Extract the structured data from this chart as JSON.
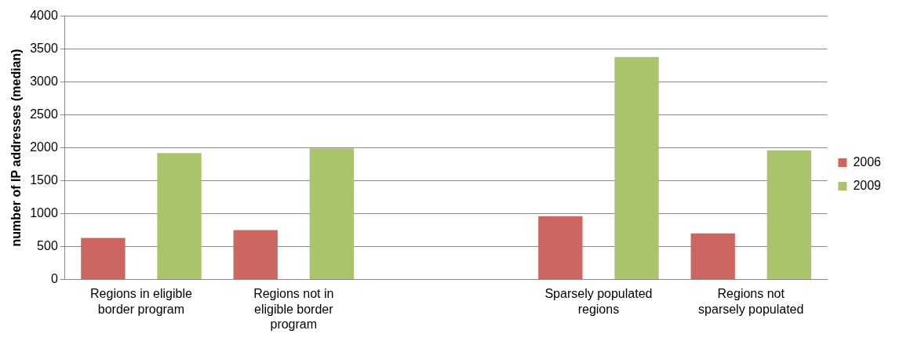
{
  "chart_data": {
    "type": "bar",
    "ylabel": "number of IP addresses (median)",
    "categories": [
      "Regions in eligible border program",
      "Regions not in eligible border program",
      null,
      "Sparsely populated regions",
      "Regions not sparsely populated"
    ],
    "series": [
      {
        "name": "2006",
        "color": "#cd6660",
        "values": [
          630,
          750,
          null,
          960,
          700
        ]
      },
      {
        "name": "2009",
        "color": "#a9c46a",
        "values": [
          1920,
          1990,
          null,
          3380,
          1960
        ]
      }
    ],
    "ylim": [
      0,
      4000
    ],
    "yticks": [
      0,
      500,
      1000,
      1500,
      2000,
      2500,
      3000,
      3500,
      4000
    ],
    "grid": "y",
    "legend": "right"
  }
}
